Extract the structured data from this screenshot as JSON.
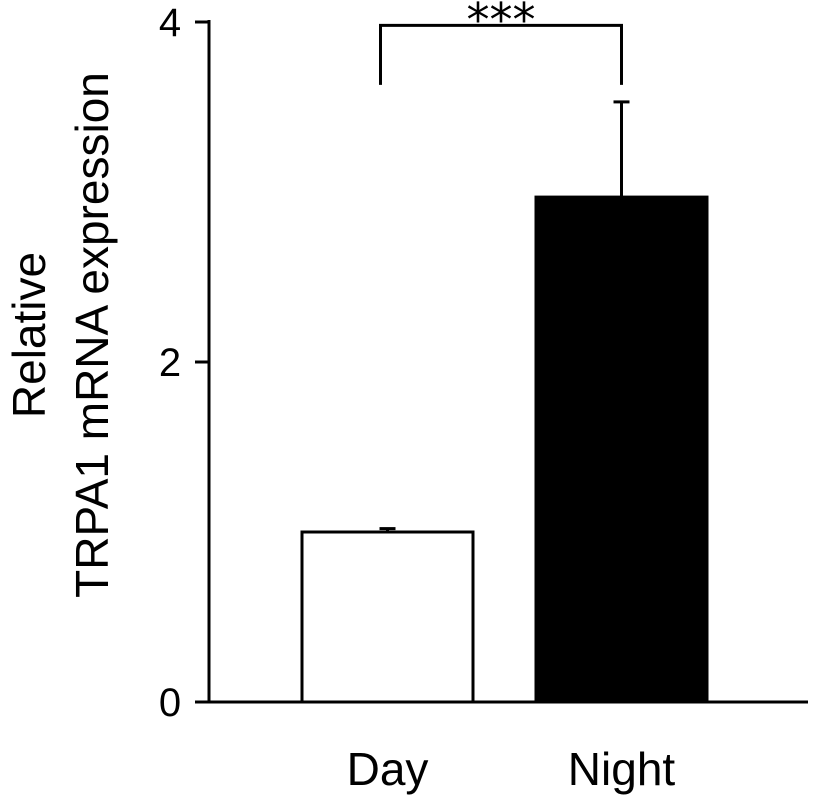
{
  "chart_data": {
    "type": "bar",
    "categories": [
      "Day",
      "Night"
    ],
    "values": [
      1.0,
      2.97
    ],
    "errors": [
      0.02,
      0.56
    ],
    "bar_colors": [
      "#ffffff",
      "#000000"
    ],
    "bar_edge_color": "#000000",
    "ylabel_lines": [
      "Relative",
      "TRPA1 mRNA expression"
    ],
    "xlabel": "",
    "title": "",
    "ylim": [
      0,
      4
    ],
    "yticks": [
      0,
      2,
      4
    ],
    "ytick_labels": [
      "0",
      "2",
      "4"
    ],
    "grid": false,
    "significance": {
      "between": [
        "Day",
        "Night"
      ],
      "label": "***",
      "bracket_y": 3.98,
      "bracket_drop_to": 3.63
    }
  }
}
